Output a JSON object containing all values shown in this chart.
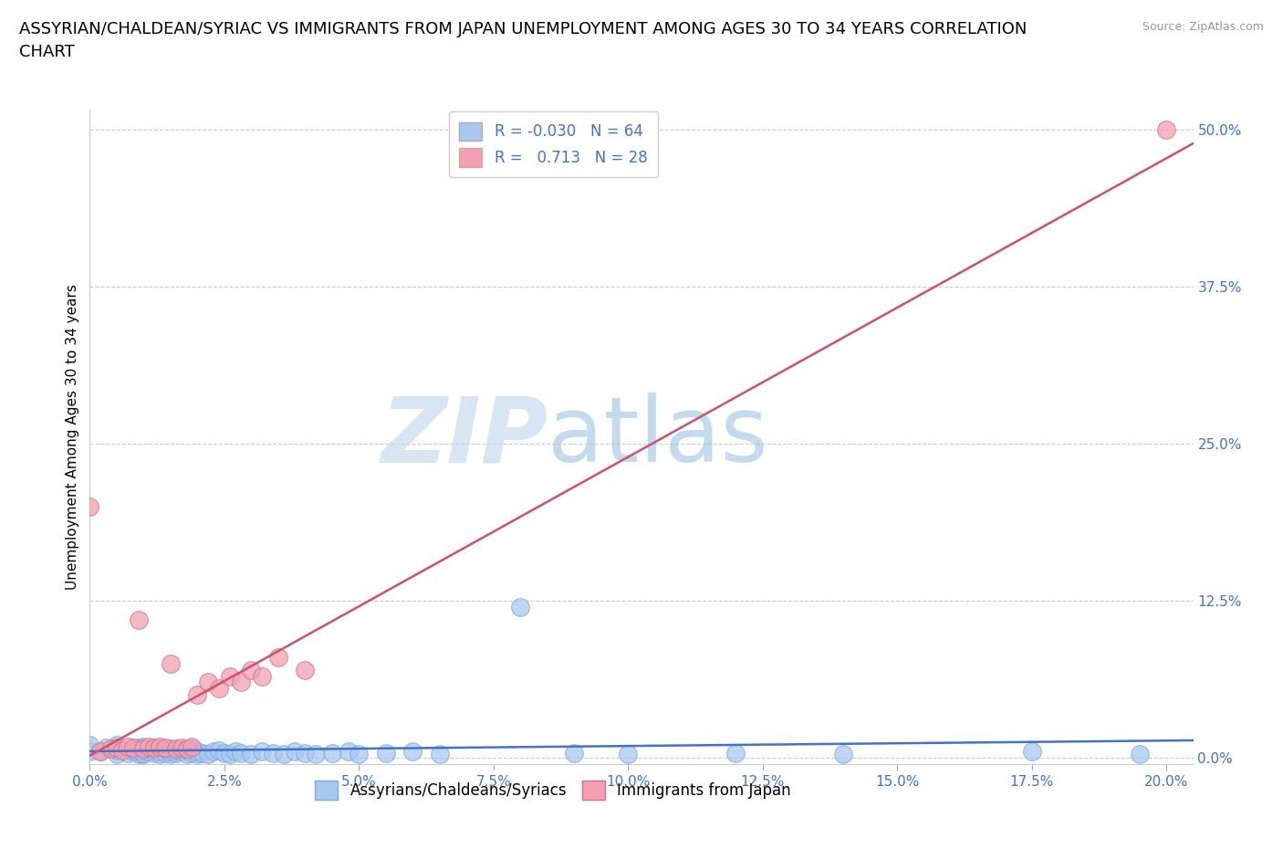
{
  "title": "ASSYRIAN/CHALDEAN/SYRIAC VS IMMIGRANTS FROM JAPAN UNEMPLOYMENT AMONG AGES 30 TO 34 YEARS CORRELATION\nCHART",
  "source_text": "Source: ZipAtlas.com",
  "xlabel_ticks": [
    "0.0%",
    "2.5%",
    "5.0%",
    "7.5%",
    "10.0%",
    "12.5%",
    "15.0%",
    "17.5%",
    "20.0%"
  ],
  "ylabel_ticks": [
    "0.0%",
    "12.5%",
    "25.0%",
    "37.5%",
    "50.0%"
  ],
  "xlim": [
    0.0,
    0.205
  ],
  "ylim": [
    -0.005,
    0.515
  ],
  "ylabel": "Unemployment Among Ages 30 to 34 years",
  "watermark_text": "ZIP",
  "watermark_text2": "atlas",
  "blue_R": -0.03,
  "blue_N": 64,
  "pink_R": 0.713,
  "pink_N": 28,
  "blue_color": "#a8c8f0",
  "pink_color": "#f4a0b0",
  "blue_line_color": "#4472c4",
  "pink_line_color": "#d05070",
  "blue_scatter_x": [
    0.0,
    0.0,
    0.002,
    0.003,
    0.005,
    0.005,
    0.005,
    0.007,
    0.008,
    0.008,
    0.009,
    0.009,
    0.009,
    0.01,
    0.01,
    0.01,
    0.01,
    0.011,
    0.012,
    0.012,
    0.013,
    0.013,
    0.014,
    0.014,
    0.015,
    0.015,
    0.015,
    0.016,
    0.016,
    0.017,
    0.018,
    0.018,
    0.019,
    0.019,
    0.02,
    0.02,
    0.021,
    0.022,
    0.023,
    0.024,
    0.025,
    0.026,
    0.027,
    0.028,
    0.03,
    0.032,
    0.034,
    0.036,
    0.038,
    0.04,
    0.042,
    0.045,
    0.048,
    0.05,
    0.055,
    0.06,
    0.065,
    0.08,
    0.09,
    0.1,
    0.12,
    0.14,
    0.175,
    0.195
  ],
  "blue_scatter_y": [
    0.005,
    0.01,
    0.005,
    0.008,
    0.003,
    0.006,
    0.01,
    0.004,
    0.005,
    0.007,
    0.003,
    0.005,
    0.008,
    0.003,
    0.004,
    0.006,
    0.009,
    0.005,
    0.004,
    0.006,
    0.003,
    0.005,
    0.004,
    0.007,
    0.003,
    0.005,
    0.007,
    0.004,
    0.006,
    0.005,
    0.003,
    0.006,
    0.004,
    0.007,
    0.003,
    0.005,
    0.004,
    0.003,
    0.005,
    0.006,
    0.004,
    0.003,
    0.005,
    0.004,
    0.003,
    0.005,
    0.004,
    0.003,
    0.005,
    0.004,
    0.003,
    0.004,
    0.005,
    0.003,
    0.004,
    0.005,
    0.003,
    0.12,
    0.004,
    0.003,
    0.004,
    0.003,
    0.005,
    0.003
  ],
  "pink_scatter_x": [
    0.0,
    0.002,
    0.004,
    0.005,
    0.006,
    0.007,
    0.008,
    0.009,
    0.01,
    0.011,
    0.012,
    0.013,
    0.014,
    0.015,
    0.016,
    0.017,
    0.018,
    0.019,
    0.02,
    0.022,
    0.024,
    0.026,
    0.028,
    0.03,
    0.032,
    0.035,
    0.04,
    0.2
  ],
  "pink_scatter_y": [
    0.2,
    0.005,
    0.007,
    0.008,
    0.006,
    0.009,
    0.008,
    0.11,
    0.007,
    0.009,
    0.008,
    0.009,
    0.008,
    0.075,
    0.007,
    0.008,
    0.007,
    0.009,
    0.05,
    0.06,
    0.055,
    0.065,
    0.06,
    0.07,
    0.065,
    0.08,
    0.07,
    0.5
  ],
  "legend_blue_label": "Assyrians/Chaldeans/Syriacs",
  "legend_pink_label": "Immigrants from Japan",
  "grid_color": "#cccccc",
  "background_color": "#ffffff",
  "title_fontsize": 13,
  "axis_label_fontsize": 11,
  "tick_fontsize": 11,
  "legend_fontsize": 12
}
